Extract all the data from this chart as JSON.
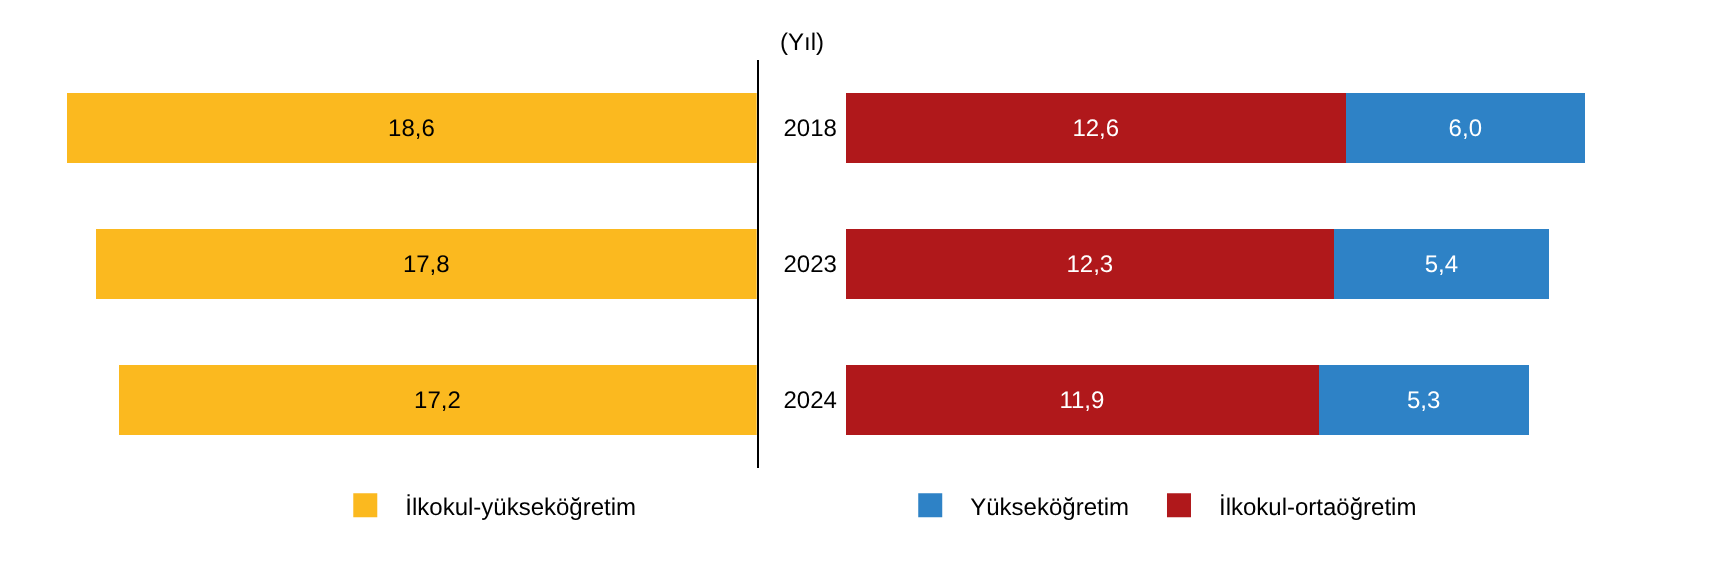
{
  "chart_data": [
    {
      "type": "bar",
      "orientation": "horizontal",
      "ylabel": "(Yıl)",
      "categories": [
        "2018",
        "2023",
        "2024"
      ],
      "xlim": [
        20.4,
        0
      ],
      "tick_labels": "y",
      "legend": "bottom",
      "series": [
        {
          "name": "İlkokul-yükseköğretim",
          "color": "#fbb91f",
          "values": [
            18.6,
            17.8,
            17.2
          ],
          "value_labels": [
            "18,6",
            "17,8",
            "17,2"
          ]
        }
      ]
    },
    {
      "type": "bar",
      "orientation": "horizontal",
      "stacked": true,
      "categories": [
        "2018",
        "2023",
        "2024"
      ],
      "xlim": [
        0,
        21.8
      ],
      "tick_labels": false,
      "legend": "bottom",
      "series": [
        {
          "name": "İlkokul-ortaöğretim",
          "color": "#b0181b",
          "values": [
            12.6,
            12.3,
            11.9
          ],
          "value_labels": [
            "12,6",
            "12,3",
            "11,9"
          ]
        },
        {
          "name": "Yükseköğretim",
          "color": "#2e82c6",
          "values": [
            6.0,
            5.4,
            5.3
          ],
          "value_labels": [
            "6,0",
            "5,4",
            "5,3"
          ]
        }
      ]
    }
  ]
}
